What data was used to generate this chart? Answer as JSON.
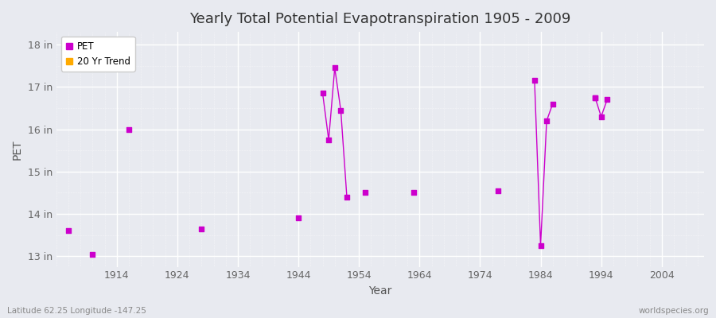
{
  "title": "Yearly Total Potential Evapotranspiration 1905 - 2009",
  "xlabel": "Year",
  "ylabel": "PET",
  "plot_bg_color": "#e8eaf0",
  "fig_bg_color": "#e8eaf0",
  "grid_color": "#ffffff",
  "ylim": [
    12.75,
    18.3
  ],
  "xlim": [
    1904,
    2011
  ],
  "ytick_labels": [
    "13 in",
    "14 in",
    "15 in",
    "16 in",
    "17 in",
    "18 in"
  ],
  "ytick_values": [
    13,
    14,
    15,
    16,
    17,
    18
  ],
  "xtick_values": [
    1914,
    1924,
    1934,
    1944,
    1954,
    1964,
    1974,
    1984,
    1994,
    2004
  ],
  "pet_color": "#cc00cc",
  "trend_color": "#ffaa00",
  "subtitle_left": "Latitude 62.25 Longitude -147.25",
  "subtitle_right": "worldspecies.org",
  "scatter_points": [
    [
      1906,
      13.6
    ],
    [
      1910,
      13.05
    ],
    [
      1916,
      16.0
    ],
    [
      1928,
      13.65
    ],
    [
      1944,
      13.9
    ],
    [
      1955,
      14.5
    ],
    [
      1963,
      14.5
    ],
    [
      1977,
      14.55
    ],
    [
      1993,
      16.75
    ]
  ],
  "line_segments": [
    [
      [
        1948,
        16.85
      ],
      [
        1949,
        15.75
      ],
      [
        1950,
        17.45
      ],
      [
        1951,
        16.45
      ],
      [
        1952,
        14.4
      ]
    ],
    [
      [
        1983,
        17.15
      ],
      [
        1984,
        13.25
      ],
      [
        1985,
        16.2
      ],
      [
        1986,
        16.6
      ]
    ],
    [
      [
        1993,
        16.75
      ],
      [
        1994,
        16.3
      ],
      [
        1995,
        16.7
      ]
    ]
  ]
}
